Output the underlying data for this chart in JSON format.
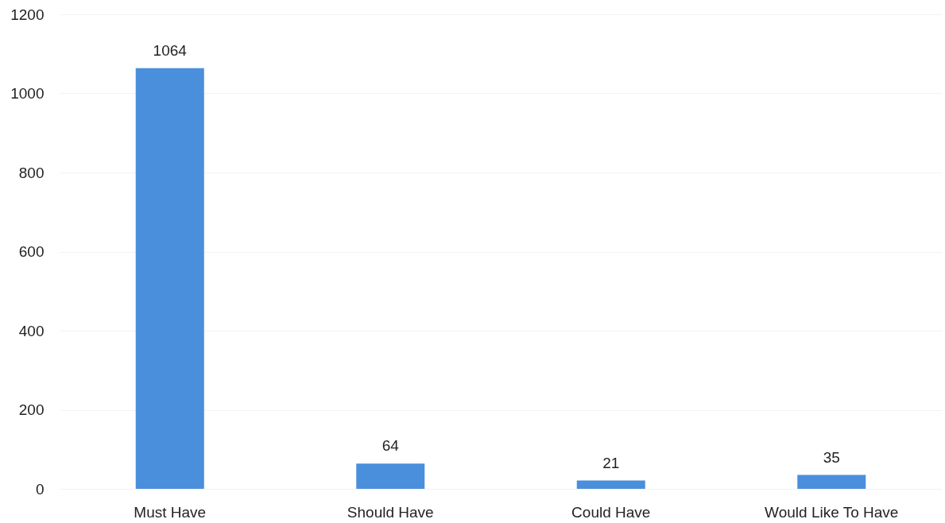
{
  "chart_data": {
    "type": "bar",
    "categories": [
      "Must Have",
      "Should Have",
      "Could Have",
      "Would Like To Have"
    ],
    "values": [
      1064,
      64,
      21,
      35
    ],
    "color": "#4a8fdc",
    "ylim": [
      0,
      1200
    ],
    "yticks": [
      0,
      200,
      400,
      600,
      800,
      1000,
      1200
    ],
    "grid": true,
    "data_labels": true
  }
}
